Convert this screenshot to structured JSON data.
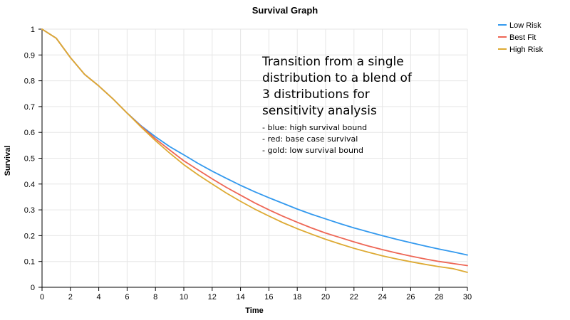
{
  "chart_data": {
    "type": "line",
    "title": "Survival Graph",
    "xlabel": "Time",
    "ylabel": "Survival",
    "xlim": [
      0,
      30
    ],
    "ylim": [
      0,
      1
    ],
    "xticks": [
      0,
      2,
      4,
      6,
      8,
      10,
      12,
      14,
      16,
      18,
      20,
      22,
      24,
      26,
      28,
      30
    ],
    "yticks": [
      0,
      0.1,
      0.2,
      0.3,
      0.4,
      0.5,
      0.6,
      0.7,
      0.8,
      0.9,
      1
    ],
    "xtick_labels": [
      "0",
      "2",
      "4",
      "6",
      "8",
      "10",
      "12",
      "14",
      "16",
      "18",
      "20",
      "22",
      "24",
      "26",
      "28",
      "30"
    ],
    "ytick_labels": [
      "0",
      "0.1",
      "0.2",
      "0.3",
      "0.4",
      "0.5",
      "0.6",
      "0.7",
      "0.8",
      "0.9",
      "1"
    ],
    "grid": true,
    "legend_position": "top-right",
    "x": [
      0,
      1,
      2,
      3,
      4,
      5,
      6,
      7,
      8,
      9,
      10,
      11,
      12,
      13,
      14,
      15,
      16,
      17,
      18,
      19,
      20,
      21,
      22,
      23,
      24,
      25,
      26,
      27,
      28,
      29,
      30
    ],
    "series": [
      {
        "name": "Low Risk",
        "color": "#3399ee",
        "values": [
          1.0,
          0.965,
          0.89,
          0.825,
          0.78,
          0.73,
          0.675,
          0.625,
          0.583,
          0.545,
          0.513,
          0.48,
          0.45,
          0.422,
          0.395,
          0.37,
          0.347,
          0.325,
          0.303,
          0.283,
          0.265,
          0.247,
          0.23,
          0.215,
          0.2,
          0.186,
          0.173,
          0.16,
          0.148,
          0.137,
          0.125
        ]
      },
      {
        "name": "Best Fit",
        "color": "#ee6655",
        "values": [
          1.0,
          0.965,
          0.89,
          0.825,
          0.78,
          0.73,
          0.675,
          0.623,
          0.575,
          0.532,
          0.49,
          0.455,
          0.42,
          0.387,
          0.357,
          0.327,
          0.3,
          0.275,
          0.252,
          0.23,
          0.21,
          0.193,
          0.176,
          0.16,
          0.146,
          0.133,
          0.121,
          0.11,
          0.1,
          0.092,
          0.084
        ]
      },
      {
        "name": "High Risk",
        "color": "#ddaa33",
        "values": [
          1.0,
          0.965,
          0.89,
          0.825,
          0.78,
          0.73,
          0.675,
          0.62,
          0.568,
          0.52,
          0.475,
          0.436,
          0.4,
          0.365,
          0.333,
          0.303,
          0.276,
          0.25,
          0.227,
          0.206,
          0.186,
          0.168,
          0.151,
          0.136,
          0.122,
          0.11,
          0.099,
          0.089,
          0.08,
          0.072,
          0.058
        ]
      }
    ],
    "annotation": {
      "heading_lines": [
        "Transition from a single",
        "distribution to a blend of",
        "3 distributions for",
        "sensitivity analysis"
      ],
      "detail_lines": [
        "- blue: high survival bound",
        "- red: base case survival",
        "- gold: low survival bound"
      ]
    }
  }
}
